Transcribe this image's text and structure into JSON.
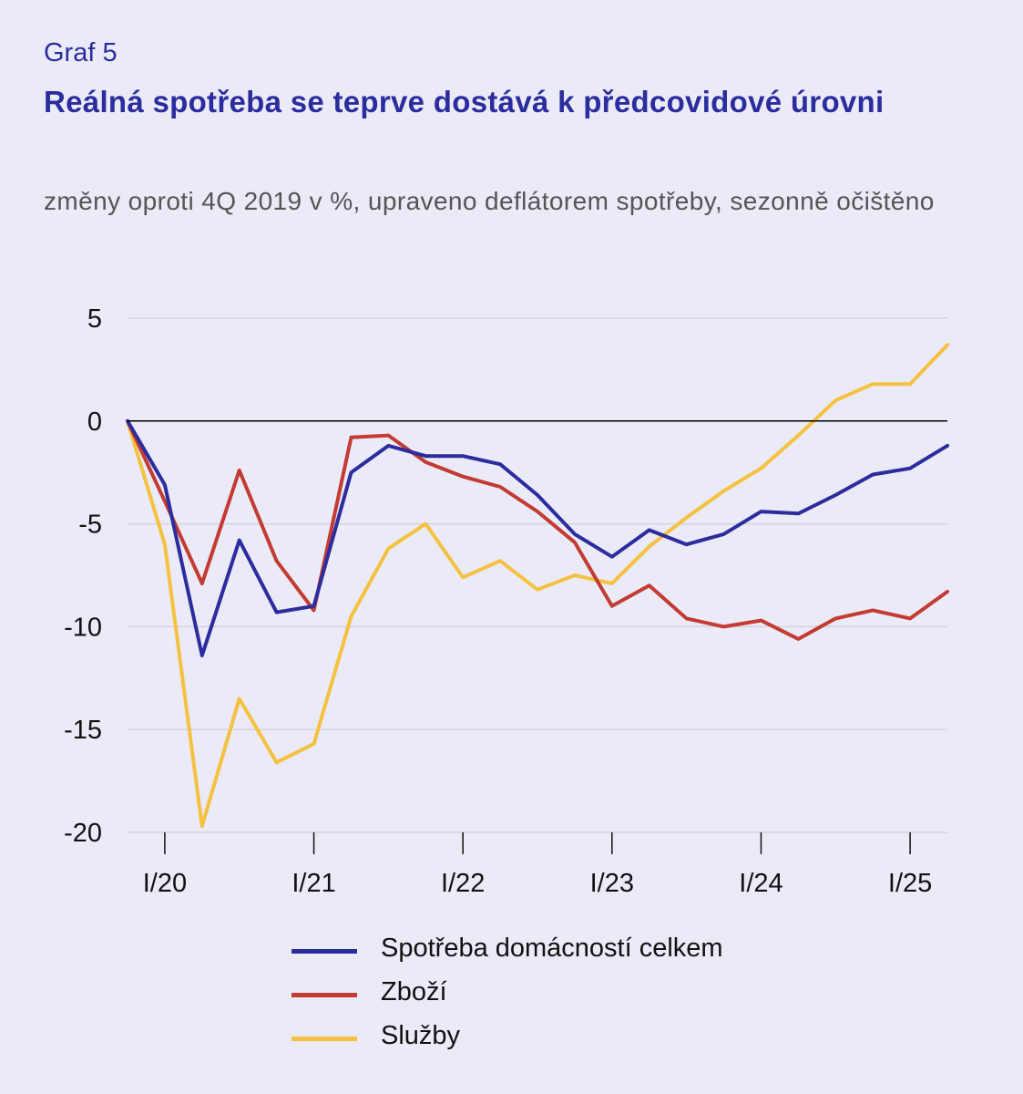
{
  "graf_label": "Graf 5",
  "title": "Reálná spotřeba se teprve dostává k předcovidové úrovni",
  "subtitle": "změny oproti 4Q 2019 v %, upraveno deflátorem spotřeby, sezonně očištěno",
  "colors": {
    "background": "#ebebf7",
    "title": "#2b2d9e",
    "gridline": "#d4d4de",
    "zero_line": "#000000"
  },
  "chart_data": {
    "type": "line",
    "x": [
      "IV/19",
      "I/20",
      "II/20",
      "III/20",
      "IV/20",
      "I/21",
      "II/21",
      "III/21",
      "IV/21",
      "I/22",
      "II/22",
      "III/22",
      "IV/22",
      "I/23",
      "II/23",
      "III/23",
      "IV/23",
      "I/24",
      "II/24",
      "III/24",
      "IV/24",
      "I/25",
      "II/25"
    ],
    "xticks": [
      "I/20",
      "I/21",
      "I/22",
      "I/23",
      "I/24",
      "I/25"
    ],
    "yticks": [
      5,
      0,
      -5,
      -10,
      -15,
      -20
    ],
    "ylim": [
      -20,
      5
    ],
    "grid": true,
    "legend_position": "bottom",
    "series": [
      {
        "name": "Spotřeba domácností celkem",
        "color": "#2b2d9e",
        "values": [
          0,
          -3.1,
          -11.4,
          -5.8,
          -9.3,
          -9.0,
          -2.5,
          -1.2,
          -1.7,
          -1.7,
          -2.1,
          -3.6,
          -5.5,
          -6.6,
          -5.3,
          -6.0,
          -5.5,
          -4.4,
          -4.5,
          -3.6,
          -2.6,
          -2.3,
          -1.2
        ]
      },
      {
        "name": "Zboží",
        "color": "#c33b32",
        "values": [
          0,
          -3.9,
          -7.9,
          -2.4,
          -6.8,
          -9.2,
          -0.8,
          -0.7,
          -2.0,
          -2.7,
          -3.2,
          -4.4,
          -5.9,
          -9.0,
          -8.0,
          -9.6,
          -10.0,
          -9.7,
          -10.6,
          -9.6,
          -9.2,
          -9.6,
          -8.3
        ]
      },
      {
        "name": "Služby",
        "color": "#f5c141",
        "values": [
          0,
          -6.0,
          -19.7,
          -13.5,
          -16.6,
          -15.7,
          -9.5,
          -6.2,
          -5.0,
          -7.6,
          -6.8,
          -8.2,
          -7.5,
          -7.9,
          -6.1,
          -4.7,
          -3.4,
          -2.3,
          -0.7,
          1.0,
          1.8,
          1.8,
          3.7
        ]
      }
    ]
  }
}
